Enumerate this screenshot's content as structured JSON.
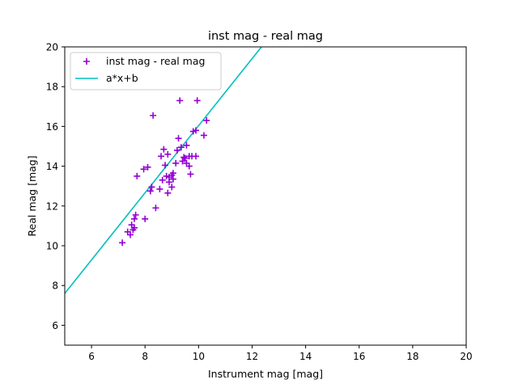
{
  "chart_data": {
    "type": "scatter",
    "title": "inst mag - real mag",
    "xlabel": "Instrument mag [mag]",
    "ylabel": "Real mag [mag]",
    "xlim": [
      5,
      20
    ],
    "ylim": [
      5,
      20
    ],
    "xticks": [
      6,
      8,
      10,
      12,
      14,
      16,
      18,
      20
    ],
    "yticks": [
      6,
      8,
      10,
      12,
      14,
      16,
      18,
      20
    ],
    "grid": false,
    "legend_position": "top-left",
    "series": [
      {
        "name": "inst mag - real mag",
        "kind": "scatter",
        "marker": "+",
        "color": "#9400d3",
        "points": [
          [
            7.15,
            10.15
          ],
          [
            7.35,
            10.7
          ],
          [
            7.45,
            10.55
          ],
          [
            7.5,
            11.05
          ],
          [
            7.55,
            10.8
          ],
          [
            7.6,
            10.9
          ],
          [
            7.6,
            11.35
          ],
          [
            7.65,
            11.55
          ],
          [
            7.7,
            13.5
          ],
          [
            7.95,
            13.85
          ],
          [
            8.0,
            11.35
          ],
          [
            8.1,
            13.95
          ],
          [
            8.2,
            12.75
          ],
          [
            8.25,
            12.95
          ],
          [
            8.3,
            16.55
          ],
          [
            8.4,
            11.9
          ],
          [
            8.55,
            12.85
          ],
          [
            8.6,
            14.5
          ],
          [
            8.65,
            13.3
          ],
          [
            8.7,
            14.85
          ],
          [
            8.75,
            14.05
          ],
          [
            8.8,
            13.5
          ],
          [
            8.85,
            12.65
          ],
          [
            8.85,
            14.6
          ],
          [
            8.9,
            13.2
          ],
          [
            8.9,
            13.45
          ],
          [
            9.0,
            12.95
          ],
          [
            9.0,
            13.55
          ],
          [
            9.05,
            13.35
          ],
          [
            9.05,
            13.65
          ],
          [
            9.15,
            14.15
          ],
          [
            9.2,
            14.8
          ],
          [
            9.25,
            15.4
          ],
          [
            9.3,
            17.3
          ],
          [
            9.35,
            14.95
          ],
          [
            9.4,
            14.25
          ],
          [
            9.45,
            14.45
          ],
          [
            9.5,
            14.4
          ],
          [
            9.55,
            14.15
          ],
          [
            9.55,
            15.05
          ],
          [
            9.65,
            14.5
          ],
          [
            9.65,
            14.0
          ],
          [
            9.7,
            13.6
          ],
          [
            9.75,
            14.5
          ],
          [
            9.8,
            15.75
          ],
          [
            9.9,
            14.5
          ],
          [
            9.9,
            15.8
          ],
          [
            9.95,
            17.3
          ],
          [
            10.2,
            15.55
          ],
          [
            10.3,
            16.3
          ]
        ]
      },
      {
        "name": "a*x+b",
        "kind": "line",
        "color": "#00bfbf",
        "points": [
          [
            5.0,
            7.6
          ],
          [
            12.35,
            20.0
          ]
        ]
      }
    ]
  }
}
